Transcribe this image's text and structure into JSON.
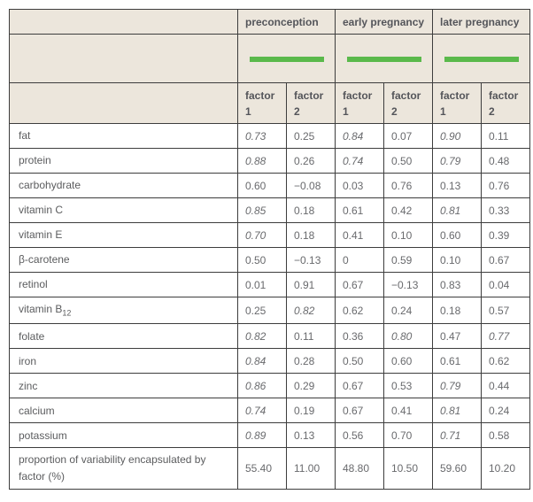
{
  "table": {
    "column_groups": [
      {
        "label": "preconception"
      },
      {
        "label": "early pregnancy"
      },
      {
        "label": "later pregnancy"
      }
    ],
    "factor_headers": [
      "factor 1",
      "factor 2"
    ],
    "colors": {
      "header_background": "#ece6dc",
      "border": "#3d3d3d",
      "legend_green": "#5ab94b"
    },
    "rows": [
      {
        "label": "fat",
        "values": [
          "0.73",
          "0.25",
          "0.84",
          "0.07",
          "0.90",
          "0.11"
        ],
        "italics": [
          true,
          false,
          true,
          false,
          true,
          false
        ]
      },
      {
        "label": "protein",
        "values": [
          "0.88",
          "0.26",
          "0.74",
          "0.50",
          "0.79",
          "0.48"
        ],
        "italics": [
          true,
          false,
          true,
          false,
          true,
          false
        ]
      },
      {
        "label": "carbohydrate",
        "values": [
          "0.60",
          "−0.08",
          "0.03",
          "0.76",
          "0.13",
          "0.76"
        ],
        "italics": [
          false,
          false,
          false,
          false,
          false,
          false
        ]
      },
      {
        "label": "vitamin C",
        "values": [
          "0.85",
          "0.18",
          "0.61",
          "0.42",
          "0.81",
          "0.33"
        ],
        "italics": [
          true,
          false,
          false,
          false,
          true,
          false
        ]
      },
      {
        "label": "vitamin E",
        "values": [
          "0.70",
          "0.18",
          "0.41",
          "0.10",
          "0.60",
          "0.39"
        ],
        "italics": [
          true,
          false,
          false,
          false,
          false,
          false
        ]
      },
      {
        "label": "β-carotene",
        "values": [
          "0.50",
          "−0.13",
          "0",
          "0.59",
          "0.10",
          "0.67"
        ],
        "italics": [
          false,
          false,
          false,
          false,
          false,
          false
        ]
      },
      {
        "label": "retinol",
        "values": [
          "0.01",
          "0.91",
          "0.67",
          "−0.13",
          "0.83",
          "0.04"
        ],
        "italics": [
          false,
          false,
          false,
          false,
          false,
          false
        ]
      },
      {
        "label": "vitamin B",
        "label_sub": "12",
        "values": [
          "0.25",
          "0.82",
          "0.62",
          "0.24",
          "0.18",
          "0.57"
        ],
        "italics": [
          false,
          true,
          false,
          false,
          false,
          false
        ]
      },
      {
        "label": "folate",
        "values": [
          "0.82",
          "0.11",
          "0.36",
          "0.80",
          "0.47",
          "0.77"
        ],
        "italics": [
          true,
          false,
          false,
          true,
          false,
          true
        ]
      },
      {
        "label": "iron",
        "values": [
          "0.84",
          "0.28",
          "0.50",
          "0.60",
          "0.61",
          "0.62"
        ],
        "italics": [
          true,
          false,
          false,
          false,
          false,
          false
        ]
      },
      {
        "label": "zinc",
        "values": [
          "0.86",
          "0.29",
          "0.67",
          "0.53",
          "0.79",
          "0.44"
        ],
        "italics": [
          true,
          false,
          false,
          false,
          true,
          false
        ]
      },
      {
        "label": "calcium",
        "values": [
          "0.74",
          "0.19",
          "0.67",
          "0.41",
          "0.81",
          "0.24"
        ],
        "italics": [
          true,
          false,
          false,
          false,
          true,
          false
        ]
      },
      {
        "label": "potassium",
        "values": [
          "0.89",
          "0.13",
          "0.56",
          "0.70",
          "0.71",
          "0.58"
        ],
        "italics": [
          true,
          false,
          false,
          false,
          true,
          false
        ]
      },
      {
        "label": "proportion of variability encapsulated by factor (%)",
        "values": [
          "55.40",
          "11.00",
          "48.80",
          "10.50",
          "59.60",
          "10.20"
        ],
        "italics": [
          false,
          false,
          false,
          false,
          false,
          false
        ]
      }
    ]
  }
}
